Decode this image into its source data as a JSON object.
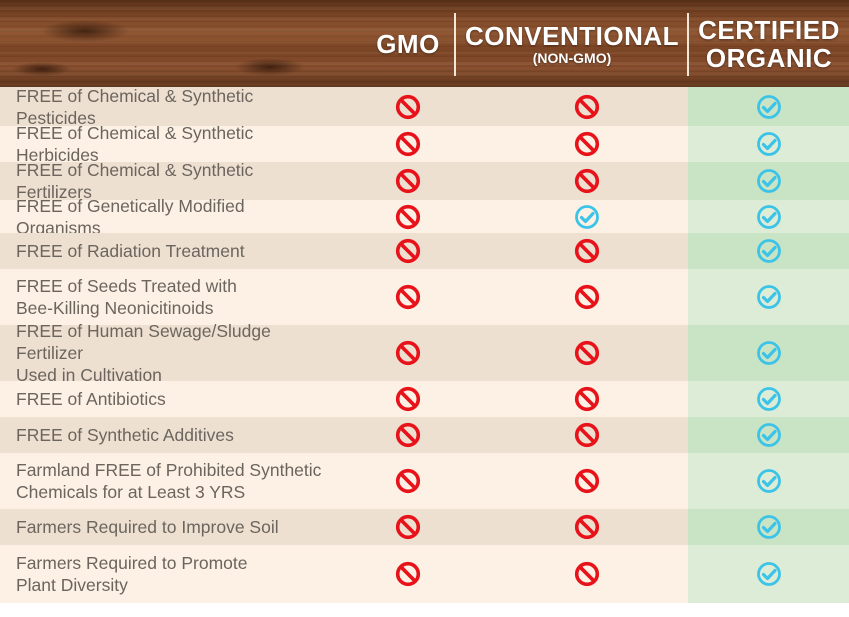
{
  "header": {
    "columns": [
      {
        "title": "GMO",
        "subtitle": ""
      },
      {
        "title": "CONVENTIONAL",
        "subtitle": "(NON-GMO)"
      },
      {
        "title": "CERTIFIED",
        "title2": "ORGANIC"
      }
    ]
  },
  "colors": {
    "no_icon": "#e8131a",
    "check_icon": "#3cc3e8"
  },
  "rows": [
    {
      "label": "FREE of Chemical & Synthetic Pesticides",
      "label2": "",
      "gmo": "no",
      "conventional": "no",
      "organic": "check"
    },
    {
      "label": "FREE of Chemical & Synthetic Herbicides",
      "label2": "",
      "gmo": "no",
      "conventional": "no",
      "organic": "check"
    },
    {
      "label": "FREE of Chemical & Synthetic Fertilizers",
      "label2": "",
      "gmo": "no",
      "conventional": "no",
      "organic": "check"
    },
    {
      "label": "FREE of Genetically Modified Organisms",
      "label2": "",
      "gmo": "no",
      "conventional": "check",
      "organic": "check"
    },
    {
      "label": "FREE of Radiation Treatment",
      "label2": "",
      "gmo": "no",
      "conventional": "no",
      "organic": "check"
    },
    {
      "label": "FREE of Seeds Treated with",
      "label2": "Bee-Killing Neonicitinoids",
      "gmo": "no",
      "conventional": "no",
      "organic": "check"
    },
    {
      "label": "FREE of Human Sewage/Sludge Fertilizer",
      "label2": "Used in Cultivation",
      "gmo": "no",
      "conventional": "no",
      "organic": "check"
    },
    {
      "label": "FREE of Antibiotics",
      "label2": "",
      "gmo": "no",
      "conventional": "no",
      "organic": "check"
    },
    {
      "label": "FREE of Synthetic Additives",
      "label2": "",
      "gmo": "no",
      "conventional": "no",
      "organic": "check"
    },
    {
      "label": "Farmland FREE of Prohibited Synthetic",
      "label2": "Chemicals for at Least 3 YRS",
      "gmo": "no",
      "conventional": "no",
      "organic": "check"
    },
    {
      "label": "Farmers Required to Improve Soil",
      "label2": "",
      "gmo": "no",
      "conventional": "no",
      "organic": "check"
    },
    {
      "label": "Farmers Required to Promote",
      "label2": "Plant Diversity",
      "gmo": "no",
      "conventional": "no",
      "organic": "check"
    }
  ]
}
